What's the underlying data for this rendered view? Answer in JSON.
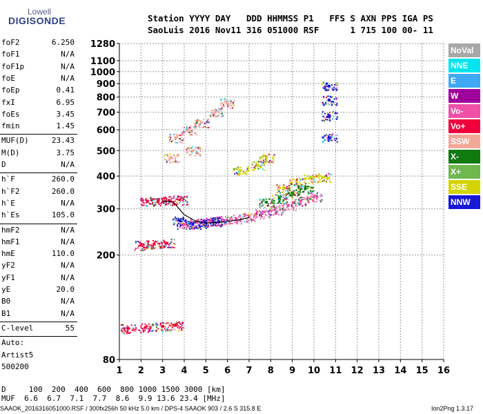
{
  "logo": {
    "top": "Lowell",
    "bottom": "DIGISONDE"
  },
  "header": {
    "line1": "Station YYYY DAY   DDD HHMMSS P1   FFS S AXN PPS IGA PS",
    "line2": "SaoLuis 2016 Nov11 316 051000 RSF      1 715 100 00- 11"
  },
  "params": {
    "group1": [
      {
        "label": "foF2",
        "value": "6.250"
      },
      {
        "label": "foF1",
        "value": "N/A"
      },
      {
        "label": "foF1p",
        "value": "N/A"
      },
      {
        "label": "foE",
        "value": "N/A"
      },
      {
        "label": "foEp",
        "value": "0.41"
      },
      {
        "label": "fxI",
        "value": "6.95"
      },
      {
        "label": "foEs",
        "value": "3.45"
      },
      {
        "label": "fmin",
        "value": "1.45"
      }
    ],
    "group2": [
      {
        "label": "MUF(D)",
        "value": "23.43"
      },
      {
        "label": "M(D)",
        "value": "3.75"
      },
      {
        "label": "D",
        "value": "N/A"
      }
    ],
    "group3": [
      {
        "label": "h`F",
        "value": "260.0"
      },
      {
        "label": "h`F2",
        "value": "260.0"
      },
      {
        "label": "h`E",
        "value": "N/A"
      },
      {
        "label": "h`Es",
        "value": "105.0"
      }
    ],
    "group4": [
      {
        "label": "hmF2",
        "value": "N/A"
      },
      {
        "label": "hmF1",
        "value": "N/A"
      },
      {
        "label": "hmE",
        "value": "110.0"
      },
      {
        "label": "yF2",
        "value": "N/A"
      },
      {
        "label": "yF1",
        "value": "N/A"
      },
      {
        "label": "yE",
        "value": "20.0"
      },
      {
        "label": "B0",
        "value": "N/A"
      },
      {
        "label": "B1",
        "value": "N/A"
      }
    ],
    "clevel": {
      "label": "C-level",
      "value": "55"
    },
    "auto": [
      "Auto:",
      "Artist5",
      "500200"
    ]
  },
  "bottom": {
    "d_row": "D     100  200  400  600  800 1000 1500 3000 [km]",
    "muf_row": "MUF  6.6  6.7  7.1  7.7  8.6  9.9 13.6 23.4 [MHz]",
    "footer": "SAAOK_2016316051000.RSF / 300fx256h 50 kHz 5.0 km / DPS-4 SAAOK 903 / 2.6 S 315.8 E",
    "version": "Ion2Png 1.3.17"
  },
  "legend": [
    {
      "name": "NoVal",
      "color": "#a8a8a8"
    },
    {
      "name": "NNE",
      "color": "#00e5ee"
    },
    {
      "name": "E",
      "color": "#3fa9f5"
    },
    {
      "name": "W",
      "color": "#a0009c"
    },
    {
      "name": "Vo-",
      "color": "#f050a8"
    },
    {
      "name": "Vo+",
      "color": "#f0003c"
    },
    {
      "name": "SSW",
      "color": "#f4a898"
    },
    {
      "name": "X-",
      "color": "#107a10"
    },
    {
      "name": "X+",
      "color": "#6fb850"
    },
    {
      "name": "SSE",
      "color": "#d4d400"
    },
    {
      "name": "NNW",
      "color": "#1818d8"
    }
  ],
  "chart_data": {
    "type": "scatter",
    "title": "",
    "xlabel": "",
    "ylabel": "",
    "xlim": [
      1,
      16
    ],
    "ylim": [
      80,
      1280
    ],
    "x_ticks": [
      "1",
      "2",
      "3",
      "4",
      "5",
      "6",
      "7",
      "8",
      "9",
      "10",
      "11",
      "12",
      "13",
      "14",
      "15",
      "16"
    ],
    "y_ticks": [
      "80",
      "200",
      "300",
      "400",
      "500",
      "600",
      "700",
      "800",
      "900",
      "1000",
      "1100",
      "1280"
    ],
    "y_tick_values": [
      80,
      200,
      300,
      400,
      500,
      600,
      700,
      800,
      900,
      1000,
      1100,
      1280
    ],
    "y_scale": "log",
    "grid": true,
    "legend_position": "right",
    "series": [
      {
        "name": "Vo-",
        "values": [
          [
            4.0,
            262
          ],
          [
            4.6,
            266
          ],
          [
            5.2,
            268
          ],
          [
            5.8,
            271
          ],
          [
            6.4,
            275
          ],
          [
            7.0,
            280
          ],
          [
            7.6,
            288
          ],
          [
            8.2,
            298
          ],
          [
            8.8,
            310
          ],
          [
            9.4,
            322
          ],
          [
            10.0,
            334
          ]
        ]
      },
      {
        "name": "SSE",
        "values": [
          [
            8.6,
            360
          ],
          [
            9.2,
            380
          ],
          [
            9.8,
            392
          ],
          [
            10.4,
            395
          ],
          [
            6.6,
            420
          ],
          [
            7.4,
            440
          ],
          [
            7.8,
            470
          ]
        ]
      },
      {
        "name": "Vo+",
        "values": [
          [
            2.3,
            321
          ],
          [
            2.8,
            322
          ],
          [
            3.3,
            323
          ],
          [
            3.8,
            325
          ],
          [
            2.0,
            218
          ],
          [
            2.6,
            220
          ],
          [
            3.2,
            222
          ],
          [
            1.4,
            105
          ],
          [
            2.2,
            106
          ],
          [
            3.0,
            107
          ],
          [
            3.6,
            108
          ]
        ]
      },
      {
        "name": "NNW",
        "values": [
          [
            3.8,
            270
          ],
          [
            4.4,
            262
          ],
          [
            5.0,
            265
          ],
          [
            5.6,
            268
          ],
          [
            10.7,
            560
          ],
          [
            10.7,
            680
          ],
          [
            10.7,
            780
          ],
          [
            10.7,
            880
          ]
        ]
      },
      {
        "name": "X-",
        "values": [
          [
            8.4,
            330
          ],
          [
            9.0,
            345
          ],
          [
            9.6,
            358
          ],
          [
            7.8,
            318
          ]
        ]
      },
      {
        "name": "SSW",
        "values": [
          [
            3.6,
            560
          ],
          [
            4.2,
            600
          ],
          [
            4.8,
            640
          ],
          [
            5.4,
            700
          ],
          [
            6.0,
            760
          ],
          [
            3.4,
            470
          ],
          [
            4.4,
            500
          ]
        ]
      }
    ],
    "trace": [
      [
        3.0,
        322
      ],
      [
        3.5,
        318
      ],
      [
        4.0,
        285
      ],
      [
        4.5,
        270
      ],
      [
        5.0,
        265
      ],
      [
        5.5,
        266
      ],
      [
        6.0,
        269
      ],
      [
        6.5,
        272
      ],
      [
        7.0,
        278
      ]
    ]
  }
}
